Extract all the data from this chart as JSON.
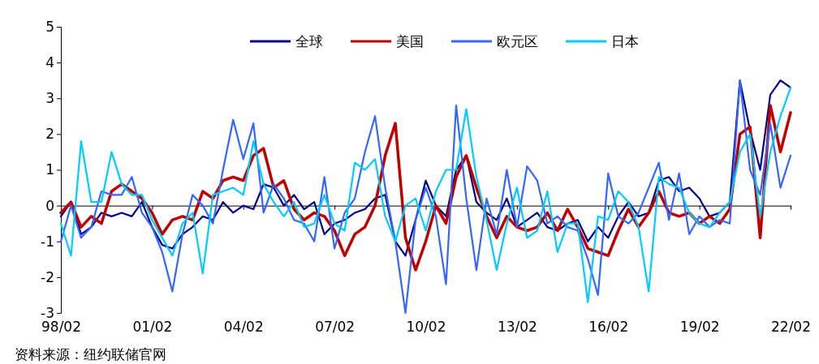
{
  "chart_data": {
    "type": "line",
    "categories": [
      "98/02",
      null,
      null,
      null,
      null,
      null,
      null,
      null,
      null,
      "01/02",
      null,
      null,
      null,
      null,
      null,
      null,
      null,
      null,
      "04/02",
      null,
      null,
      null,
      null,
      null,
      null,
      null,
      null,
      "07/02",
      null,
      null,
      null,
      null,
      null,
      null,
      null,
      null,
      "10/02",
      null,
      null,
      null,
      null,
      null,
      null,
      null,
      null,
      "13/02",
      null,
      null,
      null,
      null,
      null,
      null,
      null,
      null,
      "16/02",
      null,
      null,
      null,
      null,
      null,
      null,
      null,
      null,
      "19/02",
      null,
      null,
      null,
      null,
      null,
      null,
      null,
      null,
      "22/02"
    ],
    "series": [
      {
        "name": "全球",
        "color": "#00008b",
        "values": [
          -0.3,
          0.1,
          -0.8,
          -0.6,
          -0.2,
          -0.3,
          -0.2,
          -0.3,
          0.1,
          -0.6,
          -1.1,
          -1.2,
          -0.8,
          -0.6,
          -0.3,
          -0.4,
          0.1,
          -0.2,
          0.0,
          -0.1,
          0.6,
          0.5,
          0.0,
          0.3,
          -0.1,
          0.1,
          -0.8,
          -0.5,
          -0.4,
          -0.2,
          -0.1,
          0.2,
          0.3,
          -1.0,
          -1.4,
          -0.4,
          0.7,
          0.0,
          -0.3,
          1.0,
          1.4,
          0.1,
          -0.2,
          -0.4,
          0.2,
          -0.6,
          -0.4,
          -0.2,
          -0.6,
          -0.7,
          -0.5,
          -0.4,
          -1.0,
          -0.6,
          -0.9,
          -0.3,
          0.1,
          -0.3,
          -0.2,
          0.7,
          0.8,
          0.4,
          0.5,
          0.2,
          -0.3,
          -0.2,
          0.1,
          3.5,
          2.1,
          1.0,
          3.1,
          3.5,
          3.3
        ]
      },
      {
        "name": "美国",
        "color": "#c00000",
        "values": [
          -0.2,
          0.1,
          -0.6,
          -0.3,
          -0.5,
          0.4,
          0.6,
          0.4,
          0.2,
          -0.2,
          -0.8,
          -0.4,
          -0.3,
          -0.4,
          0.4,
          0.2,
          0.7,
          0.8,
          0.7,
          1.4,
          1.6,
          0.5,
          0.7,
          -0.1,
          -0.4,
          -0.2,
          -0.3,
          -0.7,
          -1.4,
          -0.8,
          -0.6,
          0.0,
          1.4,
          2.3,
          -0.9,
          -1.8,
          -1.0,
          0.0,
          -0.5,
          0.8,
          1.4,
          0.5,
          -0.3,
          -0.9,
          -0.3,
          -0.6,
          -0.7,
          -0.6,
          -0.2,
          -0.7,
          -0.1,
          -0.6,
          -1.2,
          -1.3,
          -1.4,
          -0.7,
          -0.1,
          -0.6,
          -0.2,
          0.4,
          -0.2,
          -0.3,
          -0.2,
          -0.5,
          -0.3,
          -0.5,
          -0.1,
          2.0,
          2.2,
          -0.9,
          2.8,
          1.5,
          2.6
        ]
      },
      {
        "name": "欧元区",
        "color": "#3366ff",
        "values": [
          -1.0,
          0.0,
          -0.9,
          -0.6,
          0.4,
          0.3,
          0.3,
          0.8,
          -0.2,
          -0.6,
          -1.3,
          -2.4,
          -0.8,
          0.3,
          0.0,
          -0.5,
          1.0,
          2.4,
          1.3,
          2.3,
          -0.2,
          0.6,
          0.2,
          -0.4,
          -0.5,
          -1.0,
          0.8,
          -1.2,
          -0.2,
          0.2,
          1.5,
          2.5,
          0.5,
          -1.0,
          -3.0,
          -0.4,
          0.5,
          -0.3,
          -2.2,
          2.8,
          0.2,
          -1.8,
          0.2,
          -0.8,
          1.0,
          -0.6,
          1.1,
          0.7,
          -0.5,
          -0.3,
          -0.6,
          -0.7,
          -1.5,
          -2.5,
          0.9,
          -0.3,
          -0.5,
          -0.2,
          0.5,
          1.2,
          -0.4,
          0.9,
          -0.8,
          -0.3,
          -0.6,
          -0.4,
          -0.5,
          3.5,
          1.0,
          0.3,
          2.3,
          0.5,
          1.4
        ]
      },
      {
        "name": "日本",
        "color": "#00ccff",
        "values": [
          -0.5,
          -1.4,
          1.8,
          0.1,
          0.1,
          1.5,
          0.6,
          0.3,
          0.3,
          -0.4,
          -0.9,
          -1.4,
          -0.5,
          -0.2,
          -1.9,
          0.3,
          0.4,
          0.5,
          0.3,
          1.8,
          0.6,
          0.1,
          -0.3,
          0.1,
          -0.6,
          -0.5,
          0.3,
          -0.5,
          -0.7,
          1.2,
          1.0,
          1.3,
          -0.3,
          -1.0,
          0.0,
          0.2,
          -0.7,
          0.4,
          1.0,
          1.0,
          2.7,
          0.8,
          -0.4,
          -1.8,
          -0.5,
          0.5,
          -0.9,
          -0.7,
          0.4,
          -1.3,
          -0.5,
          -0.5,
          -2.7,
          -0.3,
          -0.4,
          0.4,
          0.1,
          -0.6,
          -2.4,
          0.8,
          0.6,
          0.5,
          -0.2,
          -0.5,
          -0.6,
          -0.2,
          0.1,
          1.5,
          2.0,
          -0.3,
          1.5,
          2.5,
          3.3
        ]
      }
    ],
    "ylim": [
      -3,
      5
    ],
    "yticks": [
      -3,
      -2,
      -1,
      0,
      1,
      2,
      3,
      4,
      5
    ],
    "legend": "top",
    "annotations": [
      "资料来源：纽约联储官网"
    ]
  }
}
